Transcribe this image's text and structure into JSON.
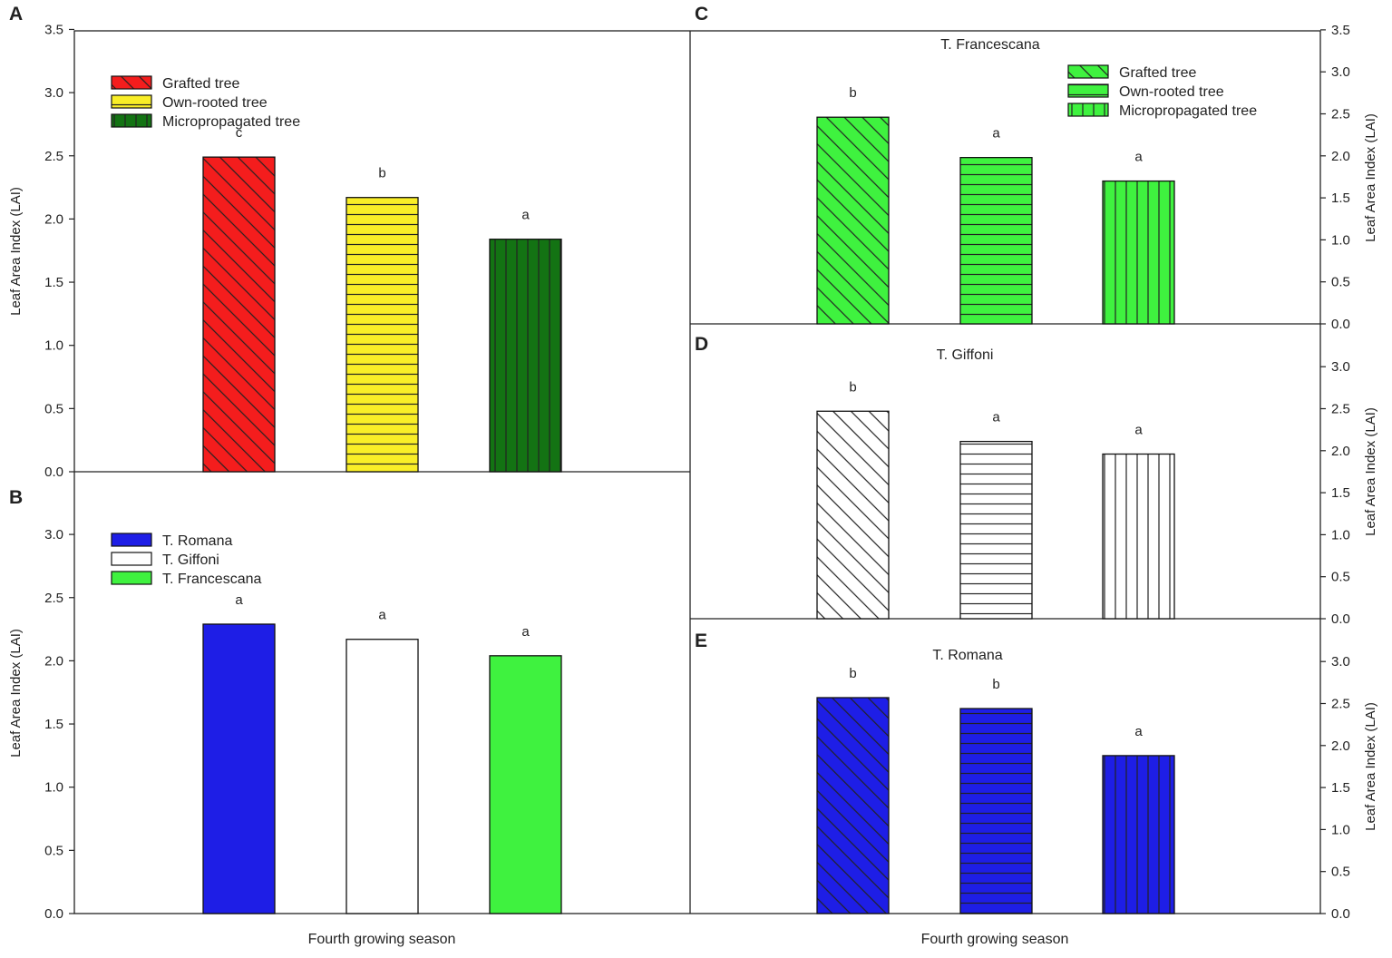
{
  "colors": {
    "red": "#f41d1d",
    "yellow": "#f9ee27",
    "darkgreen": "#137313",
    "blue": "#1e1ee6",
    "white": "#ffffff",
    "green": "#3ff23f",
    "hatch": "#222222"
  },
  "chart_data": [
    {
      "panel": "A",
      "type": "bar",
      "title": "",
      "categories": [
        "Grafted tree",
        "Own-rooted tree",
        "Micropropagated tree"
      ],
      "values": [
        2.49,
        2.17,
        1.84
      ],
      "letters": [
        "c",
        "b",
        "a"
      ],
      "patterns": [
        "diag",
        "horiz",
        "vert"
      ],
      "fills": [
        "red",
        "yellow",
        "darkgreen"
      ],
      "legend": [
        "Grafted tree",
        "Own-rooted tree",
        "Micropropagated tree"
      ],
      "legend_position": "top-left",
      "ylabel": "Leaf Area Index (LAI)",
      "ylim": [
        0,
        3.5
      ],
      "yticks": [
        "0.0",
        "0.5",
        "1.0",
        "1.5",
        "2.0",
        "2.5",
        "3.0",
        "3.5"
      ],
      "xlabel": ""
    },
    {
      "panel": "B",
      "type": "bar",
      "title": "",
      "categories": [
        "T. Romana",
        "T. Giffoni",
        "T. Francescana"
      ],
      "values": [
        2.29,
        2.17,
        2.04
      ],
      "letters": [
        "a",
        "a",
        "a"
      ],
      "patterns": [
        "solid",
        "solid",
        "solid"
      ],
      "fills": [
        "blue",
        "white",
        "green"
      ],
      "legend": [
        "T. Romana",
        "T. Giffoni",
        "T. Francescana"
      ],
      "legend_position": "top-left",
      "ylabel": "Leaf Area Index (LAI)",
      "ylim": [
        0,
        3.5
      ],
      "yticks": [
        "0.0",
        "0.5",
        "1.0",
        "1.5",
        "2.0",
        "2.5",
        "3.0"
      ],
      "xlabel": "Fourth growing season"
    },
    {
      "panel": "C",
      "type": "bar",
      "title": "T. Francescana",
      "categories": [
        "Grafted tree",
        "Own-rooted tree",
        "Micropropagated tree"
      ],
      "values": [
        2.46,
        1.98,
        1.7
      ],
      "letters": [
        "b",
        "a",
        "a"
      ],
      "patterns": [
        "diag",
        "horiz",
        "vert"
      ],
      "fills": [
        "green",
        "green",
        "green"
      ],
      "legend": [
        "Grafted tree",
        "Own-rooted tree",
        "Micropropagated tree"
      ],
      "legend_position": "top-right",
      "ylabel": "Leaf Area Index (LAI)",
      "ylim": [
        0,
        3.5
      ],
      "yticks": [
        "0.0",
        "0.5",
        "1.0",
        "1.5",
        "2.0",
        "2.5",
        "3.0",
        "3.5"
      ],
      "xlabel": ""
    },
    {
      "panel": "D",
      "type": "bar",
      "title": "T. Giffoni",
      "categories": [
        "Grafted tree",
        "Own-rooted tree",
        "Micropropagated tree"
      ],
      "values": [
        2.47,
        2.11,
        1.96
      ],
      "letters": [
        "b",
        "a",
        "a"
      ],
      "patterns": [
        "diag",
        "horiz",
        "vert"
      ],
      "fills": [
        "white",
        "white",
        "white"
      ],
      "legend": [],
      "ylabel": "Leaf Area Index (LAI)",
      "ylim": [
        0,
        3.5
      ],
      "yticks": [
        "0.0",
        "0.5",
        "1.0",
        "1.5",
        "2.0",
        "2.5",
        "3.0"
      ],
      "xlabel": ""
    },
    {
      "panel": "E",
      "type": "bar",
      "title": "T. Romana",
      "categories": [
        "Grafted tree",
        "Own-rooted tree",
        "Micropropagated tree"
      ],
      "values": [
        2.57,
        2.44,
        1.88
      ],
      "letters": [
        "b",
        "b",
        "a"
      ],
      "patterns": [
        "diag",
        "horiz",
        "vert"
      ],
      "fills": [
        "blue",
        "blue",
        "blue"
      ],
      "legend": [],
      "ylabel": "Leaf Area Index (LAI)",
      "ylim": [
        0,
        3.5
      ],
      "yticks": [
        "0.0",
        "0.5",
        "1.0",
        "1.5",
        "2.0",
        "2.5",
        "3.0"
      ],
      "xlabel": "Fourth growing season"
    }
  ]
}
